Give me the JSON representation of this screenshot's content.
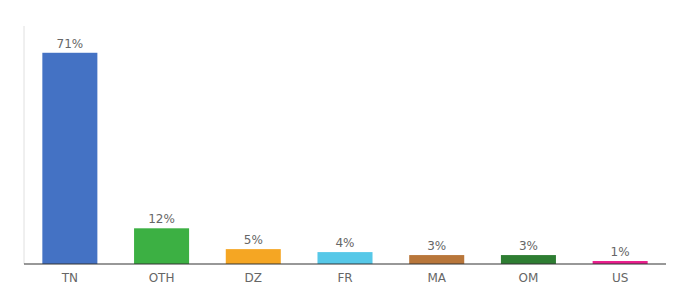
{
  "chart_data": {
    "type": "bar",
    "categories": [
      "TN",
      "OTH",
      "DZ",
      "FR",
      "MA",
      "OM",
      "US"
    ],
    "values": [
      71,
      12,
      5,
      4,
      3,
      3,
      1
    ],
    "value_labels": [
      "71%",
      "12%",
      "5%",
      "4%",
      "3%",
      "3%",
      "1%"
    ],
    "colors": [
      "#4472C4",
      "#3CB043",
      "#F5A623",
      "#56C8E8",
      "#B8763A",
      "#2E7D32",
      "#E91E8C"
    ],
    "ylim": [
      0,
      80
    ],
    "data_labels": true,
    "tick_labels": "x",
    "grid": false
  }
}
